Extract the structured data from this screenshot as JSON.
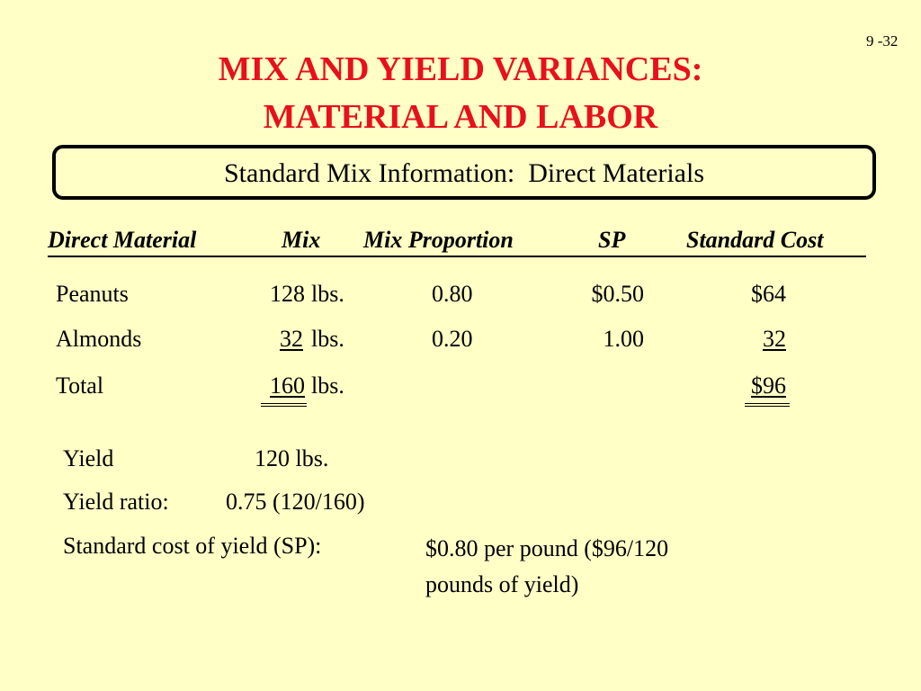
{
  "slide_number": "9 -32",
  "title": {
    "line1": "MIX AND YIELD VARIANCES:",
    "line2": "MATERIAL AND LABOR"
  },
  "box_heading": "Standard Mix Information:  Direct Materials",
  "table": {
    "headers": [
      "Direct Material",
      "Mix",
      "Mix Proportion",
      "SP",
      "Standard Cost"
    ],
    "rows": [
      {
        "material": "Peanuts",
        "mix": "128",
        "unit": "lbs.",
        "proportion": "0.80",
        "sp": "$0.50",
        "cost": "$64"
      },
      {
        "material": "Almonds",
        "mix": "32",
        "unit": "lbs.",
        "proportion": "0.20",
        "sp": "1.00",
        "cost": "32"
      },
      {
        "material": "Total",
        "mix": "160",
        "unit": "lbs.",
        "cost": "$96"
      }
    ]
  },
  "notes": {
    "yield_label": "Yield",
    "yield_value": "120 lbs.",
    "ratio_label": "Yield ratio:",
    "ratio_value": "0.75 (120/160)",
    "cost_label": "Standard cost of yield (SP):",
    "cost_value": [
      "$0.80 per pound ($96/120",
      "pounds of yield)"
    ]
  }
}
